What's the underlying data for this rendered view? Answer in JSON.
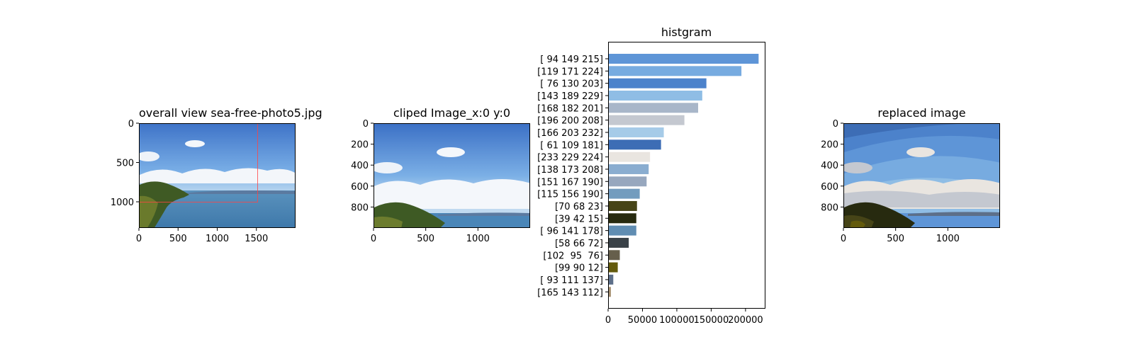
{
  "chart_data": [
    {
      "type": "image",
      "title": "overall view sea-free-photo5.jpg",
      "x_ticks": [
        0,
        500,
        1000,
        1500
      ],
      "y_ticks": [
        0,
        500,
        1000
      ],
      "xlim": [
        0,
        2000
      ],
      "ylim": [
        0,
        1333
      ]
    },
    {
      "type": "image",
      "title": "cliped Image_x:0 y:0",
      "x_ticks": [
        0,
        500,
        1000
      ],
      "y_ticks": [
        0,
        200,
        400,
        600,
        800
      ],
      "xlim": [
        0,
        1500
      ],
      "ylim": [
        0,
        1000
      ]
    },
    {
      "type": "bar",
      "orientation": "horizontal",
      "title": "histgram",
      "categories": [
        "[ 94 149 215]",
        "[119 171 224]",
        "[ 76 130 203]",
        "[143 189 229]",
        "[168 182 201]",
        "[196 200 208]",
        "[166 203 232]",
        "[ 61 109 181]",
        "[233 229 224]",
        "[138 173 208]",
        "[151 167 190]",
        "[115 156 190]",
        "[70 68 23]",
        "[39 42 15]",
        "[ 96 141 178]",
        "[58 66 72]",
        "[102  95  76]",
        "[99 90 12]",
        "[ 93 111 137]",
        "[165 143 112]"
      ],
      "values": [
        218000,
        193000,
        142000,
        136000,
        130000,
        110000,
        80000,
        76000,
        60000,
        58000,
        55000,
        45000,
        41000,
        40000,
        40000,
        29000,
        16000,
        13000,
        6500,
        3000
      ],
      "colors": [
        "#5e95d7",
        "#77abe0",
        "#4c82cb",
        "#8fbde5",
        "#a8b6c9",
        "#c4c8d0",
        "#a6cbe8",
        "#3d6db5",
        "#e9e5e0",
        "#8aadd0",
        "#97a7be",
        "#739cbe",
        "#464417",
        "#272a0f",
        "#608db2",
        "#3a4248",
        "#665f4c",
        "#635a0c",
        "#5d6f89",
        "#a58f70"
      ],
      "x_ticks": [
        0,
        50000,
        100000,
        150000,
        200000
      ],
      "xlim": [
        0,
        229000
      ]
    },
    {
      "type": "image",
      "title": "replaced image",
      "x_ticks": [
        0,
        500,
        1000
      ],
      "y_ticks": [
        0,
        200,
        400,
        600,
        800
      ],
      "xlim": [
        0,
        1500
      ],
      "ylim": [
        0,
        1000
      ]
    }
  ]
}
